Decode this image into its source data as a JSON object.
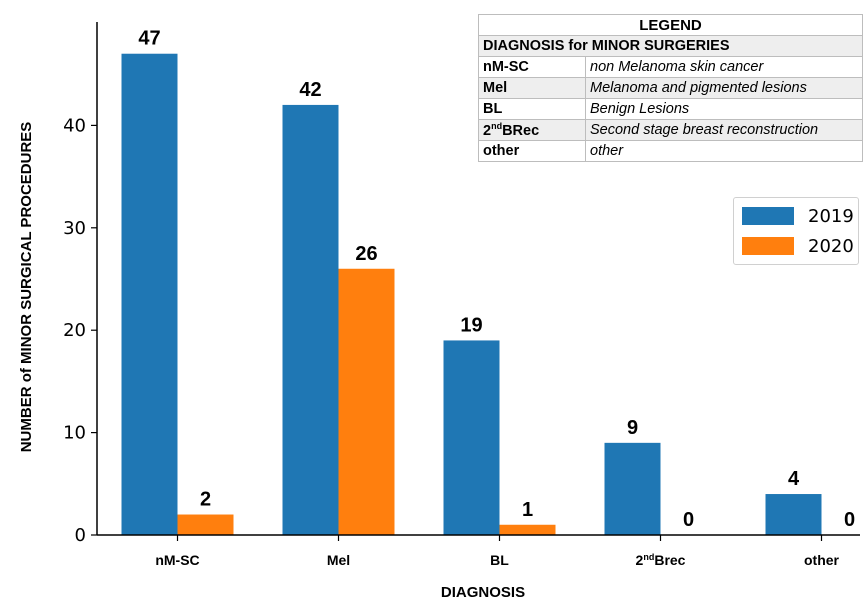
{
  "chart_data": {
    "type": "bar",
    "categories": [
      "nM-SC",
      "Mel",
      "BL",
      "2ndBrec",
      "other"
    ],
    "series": [
      {
        "name": "2019",
        "values": [
          47,
          42,
          19,
          9,
          4
        ],
        "color": "#1f77b4"
      },
      {
        "name": "2020",
        "values": [
          2,
          26,
          1,
          0,
          0
        ],
        "color": "#ff7f0e"
      }
    ],
    "xlabel": "DIAGNOSIS",
    "ylabel": "NUMBER of MINOR SURGICAL PROCEDURES",
    "ylim": [
      0,
      50
    ],
    "yticks": [
      0,
      10,
      20,
      30,
      40
    ],
    "grid": false,
    "legend_position": "top-right"
  },
  "legend_table": {
    "title": "LEGEND",
    "subtitle": "DIAGNOSIS for MINOR SURGERIES",
    "rows": [
      {
        "code": "nM-SC",
        "description": "non Melanoma skin cancer"
      },
      {
        "code": "Mel",
        "description": "Melanoma and pigmented lesions"
      },
      {
        "code": "BL",
        "description": "Benign Lesions"
      },
      {
        "code_prefix": "2",
        "code_sup": "nd",
        "code_suffix": "BRec",
        "description": "Second stage breast reconstruction"
      },
      {
        "code": "other",
        "description": "other"
      }
    ]
  }
}
